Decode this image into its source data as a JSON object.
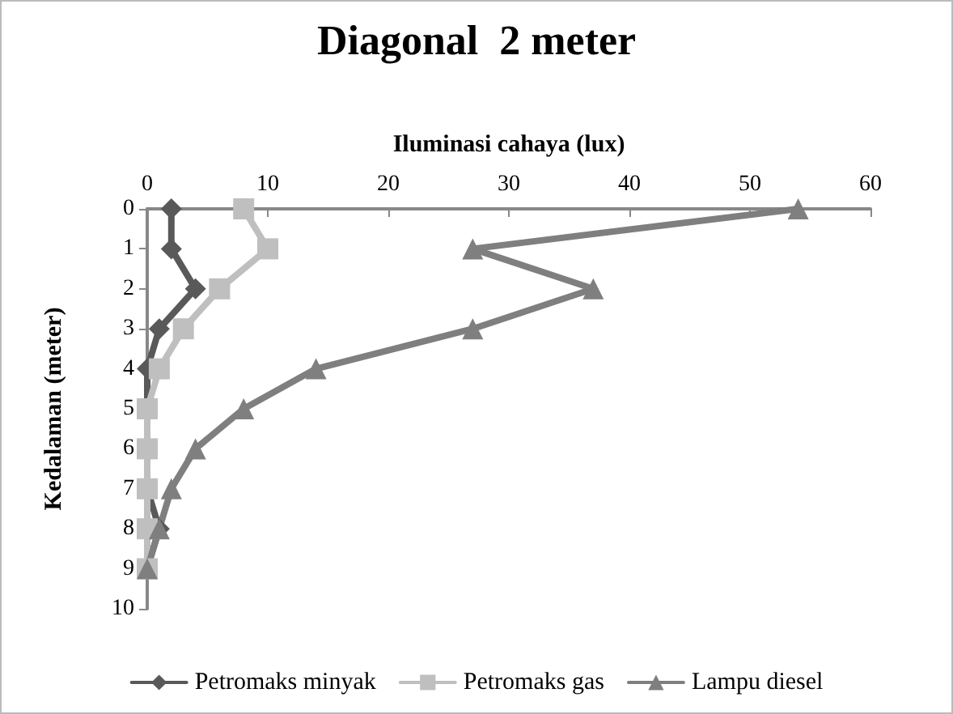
{
  "chart_data": {
    "type": "line",
    "title": "Diagonal  2 meter",
    "xlabel": "Iluminasi cahaya (lux)",
    "ylabel": "Kedalaman (meter)",
    "xlim": [
      0,
      60
    ],
    "xticks": [
      0,
      10,
      20,
      30,
      40,
      50,
      60
    ],
    "ylim": [
      10,
      0
    ],
    "yticks": [
      0,
      1,
      2,
      3,
      4,
      5,
      6,
      7,
      8,
      9,
      10
    ],
    "series": [
      {
        "name": "Petromaks minyak",
        "color": "#595959",
        "marker": "diamond",
        "x": [
          2,
          2,
          4,
          1,
          0,
          0,
          0,
          0,
          1,
          0
        ],
        "values": [
          0,
          1,
          2,
          3,
          4,
          5,
          6,
          7,
          8,
          9
        ]
      },
      {
        "name": "Petromaks gas",
        "color": "#bfbfbf",
        "marker": "square",
        "x": [
          8,
          10,
          6,
          3,
          1,
          0,
          0,
          0,
          0,
          0
        ],
        "values": [
          0,
          1,
          2,
          3,
          4,
          5,
          6,
          7,
          8,
          9
        ]
      },
      {
        "name": "Lampu diesel",
        "color": "#7f7f7f",
        "marker": "triangle",
        "x": [
          54,
          27,
          37,
          27,
          14,
          8,
          4,
          2,
          1,
          0
        ],
        "values": [
          0,
          1,
          2,
          3,
          4,
          5,
          6,
          7,
          8,
          9
        ]
      }
    ],
    "grid": false,
    "legend": "bottom",
    "line_style": "solid"
  }
}
